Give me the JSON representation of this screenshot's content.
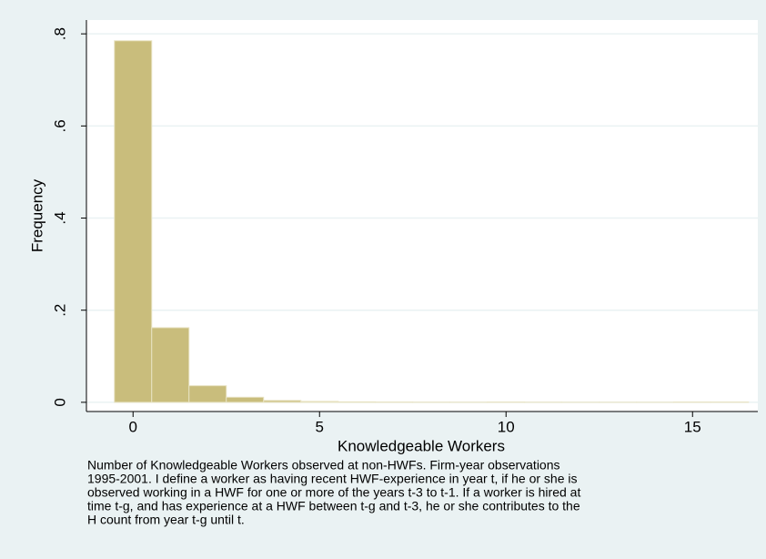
{
  "chart_data": {
    "type": "histogram",
    "x_label": "Knowledgeable Workers",
    "y_label": "Frequency",
    "bins": [
      -0.5,
      0.5,
      1.5,
      2.5,
      3.5,
      4.5,
      5.5,
      6.5,
      7.5,
      8.5,
      9.5,
      10.5,
      11.5,
      12.5,
      13.5,
      14.5,
      15.5,
      16.5
    ],
    "values": [
      0.785,
      0.162,
      0.036,
      0.011,
      0.004,
      0.002,
      0.001,
      0.0005,
      0.0003,
      0.0002,
      0.0005,
      0.0002,
      0.0001,
      0.0001,
      0.0001,
      0.0005,
      0.0005
    ],
    "color": "#c9bd7c",
    "xlim": [
      -1.25,
      16.75
    ],
    "xticks": [
      0,
      5,
      10,
      15
    ],
    "ylim": [
      -0.02,
      0.83
    ],
    "yticks": [
      0,
      {
        "value": 0.2,
        "label": ".2"
      },
      {
        "value": 0.4,
        "label": ".4"
      },
      {
        "value": 0.6,
        "label": ".6"
      },
      {
        "value": 0.8,
        "label": ".8"
      }
    ],
    "grid": true,
    "note": [
      "Number of Knowledgeable Workers observed at non-HWFs. Firm-year observations",
      "1995-2001. I define a worker as having recent HWF-experience in year t, if he or she is",
      "observed working in a HWF for one or more of the years t-3 to t-1. If a worker is hired at",
      "time t-g, and has experience at a HWF between t-g and t-3, he or she contributes to the",
      "H count from year t-g until t."
    ]
  }
}
